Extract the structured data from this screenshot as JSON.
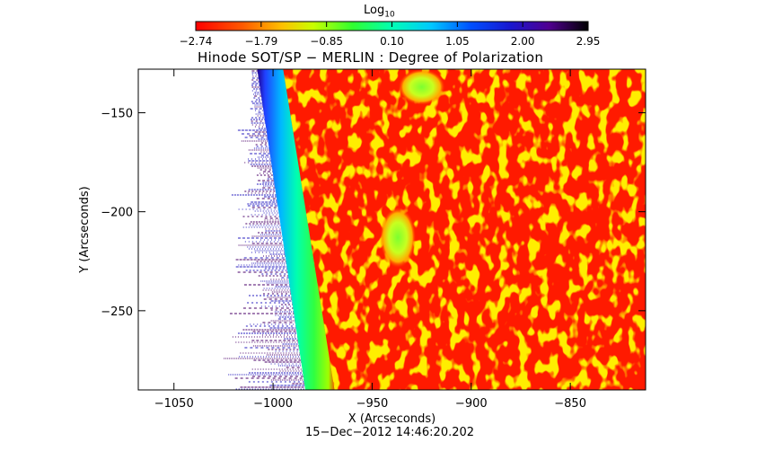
{
  "colorbar": {
    "title_main": "Log",
    "title_sub": "10",
    "ticks": [
      "−2.74",
      "−1.79",
      "−0.85",
      "0.10",
      "1.05",
      "2.00",
      "2.95"
    ]
  },
  "timestamp": "15−Dec−2012 14:46:20.202",
  "chart_data": {
    "type": "heatmap",
    "title": "Hinode SOT/SP − MERLIN : Degree of Polarization",
    "xlabel": "X (Arcseconds)",
    "ylabel": "Y (Arcseconds)",
    "xlim": [
      -1068,
      -812
    ],
    "ylim": [
      -290,
      -128
    ],
    "xticks": [
      -1050,
      -1000,
      -950,
      -900,
      -850
    ],
    "xtick_labels": [
      "−1050",
      "−1000",
      "−950",
      "−900",
      "−850"
    ],
    "yticks": [
      -150,
      -200,
      -250
    ],
    "ytick_labels": [
      "−150",
      "−200",
      "−250"
    ],
    "colorscale": "log10",
    "color_range": [
      -2.74,
      2.95
    ],
    "colors": {
      "background_disk": "#ff1a00",
      "limb_band": [
        "#00ff40",
        "#00ffcc",
        "#0090ff",
        "#2020c0"
      ],
      "off_limb": "#ffffff"
    },
    "features": [
      {
        "label": "bright region",
        "x": -937,
        "y": -213
      },
      {
        "label": "bright patch",
        "x": -925,
        "y": -137
      }
    ]
  }
}
